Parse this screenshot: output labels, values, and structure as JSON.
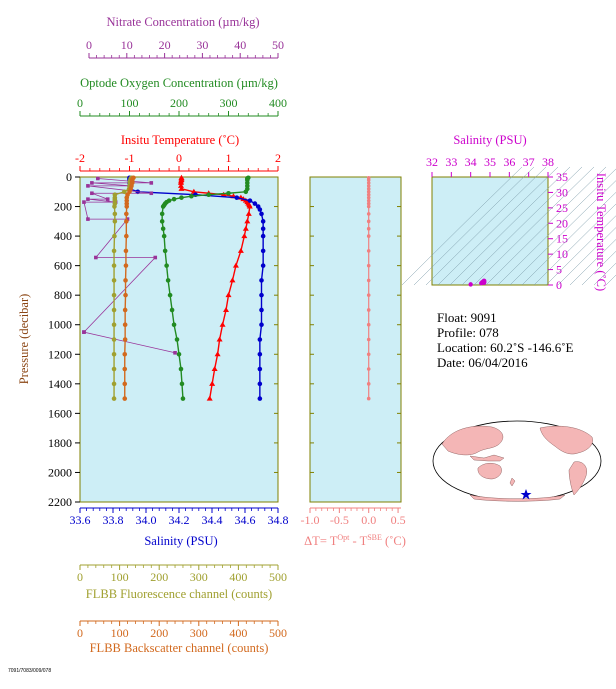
{
  "colors": {
    "nitrate": "#993399",
    "oxygen": "#228b22",
    "temperature": "#ff0000",
    "salinity": "#0000cc",
    "fluorescence": "#a0a030",
    "backscatter": "#d2691e",
    "delta_t": "#f08080",
    "panel_bg": "#cdeef6",
    "ts_axis": "#cc00cc",
    "frame": "#808000"
  },
  "axes": {
    "nitrate": {
      "label": "Nitrate Concentration (µm/kg)",
      "ticks": [
        "0",
        "10",
        "20",
        "30",
        "40",
        "50"
      ]
    },
    "oxygen": {
      "label": "Optode Oxygen Concentration (µm/kg)",
      "ticks": [
        "0",
        "100",
        "200",
        "300",
        "400"
      ]
    },
    "temperature": {
      "label": "Insitu Temperature (˚C)",
      "ticks": [
        "-2",
        "-1",
        "0",
        "1",
        "2"
      ]
    },
    "pressure": {
      "label": "Pressure (decibar)",
      "ticks": [
        "0",
        "200",
        "400",
        "600",
        "800",
        "1000",
        "1200",
        "1400",
        "1600",
        "1800",
        "2000",
        "2200"
      ]
    },
    "salinity": {
      "label": "Salinity (PSU)",
      "ticks": [
        "33.6",
        "33.8",
        "34.0",
        "34.2",
        "34.4",
        "34.6",
        "34.8"
      ]
    },
    "fluorescence": {
      "label": "FLBB Fluorescence channel (counts)",
      "ticks": [
        "0",
        "100",
        "200",
        "300",
        "400",
        "500"
      ]
    },
    "backscatter": {
      "label": "FLBB Backscatter channel (counts)",
      "ticks": [
        "0",
        "100",
        "200",
        "300",
        "400",
        "500"
      ]
    },
    "delta_t": {
      "label_main": "ΔT= T",
      "sup1": "Opt",
      "mid": " - T",
      "sup2": "SBE",
      "unit": " (˚C)",
      "ticks": [
        "-1.0",
        "-0.5",
        "0.0",
        "0.5"
      ]
    },
    "ts_salinity": {
      "label": "Salinity (PSU)",
      "ticks": [
        "32",
        "33",
        "34",
        "35",
        "36",
        "37",
        "38"
      ]
    },
    "ts_temperature": {
      "label": "Insitu Temperature (˚C)",
      "ticks": [
        "0",
        "5",
        "10",
        "15",
        "20",
        "25",
        "30",
        "35"
      ]
    }
  },
  "info": {
    "float": "Float:  9091",
    "profile": "Profile:  078",
    "location": "Location:  60.2˚S  -146.6˚E",
    "date": "Date:  06/04/2016"
  },
  "footer_code": "7091/7083/009/078",
  "chart_data": [
    {
      "type": "line",
      "name": "profile",
      "ylabel": "Pressure (decibar)",
      "ylim": [
        2200,
        0
      ],
      "series": [
        {
          "name": "Insitu Temperature",
          "xlim": [
            -2,
            2
          ],
          "marker": "triangle",
          "pressure": [
            5,
            10,
            20,
            30,
            40,
            60,
            80,
            100,
            110,
            120,
            130,
            140,
            150,
            160,
            170,
            180,
            190,
            200,
            250,
            300,
            350,
            400,
            500,
            600,
            700,
            800,
            900,
            1000,
            1100,
            1200,
            1300,
            1400,
            1500
          ],
          "values": [
            0.05,
            0.05,
            0.05,
            0.04,
            0.04,
            0.04,
            0.05,
            0.3,
            0.6,
            0.9,
            1.1,
            1.25,
            1.3,
            1.35,
            1.38,
            1.4,
            1.42,
            1.43,
            1.41,
            1.38,
            1.35,
            1.32,
            1.25,
            1.15,
            1.08,
            1.0,
            0.95,
            0.88,
            0.82,
            0.78,
            0.72,
            0.67,
            0.62
          ]
        },
        {
          "name": "Salinity",
          "xlim": [
            33.6,
            34.8
          ],
          "marker": "circle",
          "pressure": [
            5,
            10,
            20,
            40,
            60,
            80,
            100,
            120,
            140,
            160,
            180,
            200,
            220,
            250,
            300,
            350,
            400,
            500,
            600,
            700,
            800,
            900,
            1000,
            1100,
            1200,
            1300,
            1400,
            1500
          ],
          "values": [
            33.9,
            33.9,
            33.9,
            33.9,
            33.9,
            33.9,
            33.95,
            34.3,
            34.55,
            34.63,
            34.66,
            34.68,
            34.69,
            34.7,
            34.71,
            34.71,
            34.71,
            34.71,
            34.71,
            34.7,
            34.7,
            34.7,
            34.7,
            34.69,
            34.69,
            34.69,
            34.69,
            34.69
          ]
        },
        {
          "name": "Optode Oxygen",
          "xlim": [
            0,
            400
          ],
          "marker": "circle",
          "pressure": [
            5,
            10,
            20,
            40,
            60,
            80,
            100,
            110,
            120,
            130,
            140,
            150,
            160,
            170,
            180,
            190,
            200,
            250,
            300,
            350,
            400,
            500,
            600,
            700,
            800,
            900,
            1000,
            1100,
            1200,
            1300,
            1400,
            1500
          ],
          "values": [
            340,
            338,
            338,
            338,
            338,
            338,
            335,
            300,
            260,
            225,
            205,
            190,
            180,
            175,
            172,
            170,
            168,
            166,
            166,
            168,
            170,
            172,
            175,
            178,
            182,
            186,
            190,
            196,
            200,
            204,
            206,
            208
          ]
        },
        {
          "name": "Nitrate",
          "xlim": [
            0,
            50
          ],
          "marker": "square",
          "pressure": [
            10,
            40,
            40,
            60,
            60,
            110,
            110,
            150,
            150,
            170,
            170,
            285,
            285,
            545,
            545,
            1050,
            1050,
            1190
          ],
          "values": [
            4.5,
            18,
            3,
            13,
            2,
            18,
            3,
            7,
            2,
            9,
            1,
            2,
            12,
            4,
            19,
            1,
            1,
            24
          ]
        },
        {
          "name": "FLBB Fluorescence",
          "xlim": [
            0,
            500
          ],
          "marker": "circle",
          "pressure": [
            5,
            10,
            20,
            30,
            40,
            60,
            80,
            100,
            120,
            140,
            150,
            160,
            180,
            200,
            250,
            300,
            400,
            500,
            600,
            700,
            800,
            900,
            1000,
            1100,
            1200,
            1300,
            1400,
            1500
          ],
          "values": [
            130,
            128,
            127,
            126,
            126,
            125,
            124,
            112,
            88,
            88,
            88,
            88,
            88,
            87,
            88,
            88,
            87,
            86,
            86,
            86,
            86,
            86,
            86,
            86,
            86,
            86,
            86,
            86
          ]
        },
        {
          "name": "FLBB Backscatter",
          "xlim": [
            0,
            500
          ],
          "marker": "circle",
          "pressure": [
            5,
            10,
            20,
            30,
            40,
            60,
            80,
            100,
            120,
            140,
            160,
            180,
            200,
            250,
            300,
            400,
            500,
            600,
            700,
            800,
            900,
            1000,
            1100,
            1200,
            1300,
            1400,
            1500
          ],
          "values": [
            135,
            133,
            132,
            132,
            132,
            130,
            128,
            125,
            120,
            118,
            118,
            118,
            118,
            117,
            117,
            117,
            116,
            116,
            115,
            115,
            114,
            114,
            114,
            113,
            113,
            113,
            113
          ]
        }
      ]
    },
    {
      "type": "line",
      "name": "delta_t",
      "xlim": [
        -1.0,
        0.55
      ],
      "ylim": [
        2200,
        0
      ],
      "pressure": [
        5,
        20,
        40,
        60,
        80,
        100,
        120,
        140,
        160,
        180,
        200,
        250,
        300,
        350,
        400,
        500,
        600,
        700,
        800,
        900,
        1000,
        1100,
        1200,
        1300,
        1400,
        1500
      ],
      "values": [
        0.0,
        0.0,
        0.0,
        0.0,
        0.0,
        0.0,
        0.0,
        0.0,
        0.0,
        0.0,
        0.0,
        0.0,
        0.0,
        0.0,
        0.0,
        0.0,
        0.0,
        0.0,
        0.0,
        0.0,
        0.0,
        0.0,
        0.0,
        0.0,
        0.0,
        0.0
      ]
    },
    {
      "type": "scatter",
      "name": "ts_diagram",
      "xlim": [
        32,
        38
      ],
      "ylim": [
        0,
        35
      ],
      "points": [
        [
          34.0,
          0.2
        ],
        [
          34.55,
          0.6
        ],
        [
          34.6,
          0.9
        ],
        [
          34.65,
          1.1
        ],
        [
          34.68,
          1.3
        ],
        [
          34.7,
          1.35
        ],
        [
          34.69,
          1.2
        ],
        [
          34.7,
          0.9
        ],
        [
          34.69,
          0.7
        ]
      ]
    }
  ]
}
